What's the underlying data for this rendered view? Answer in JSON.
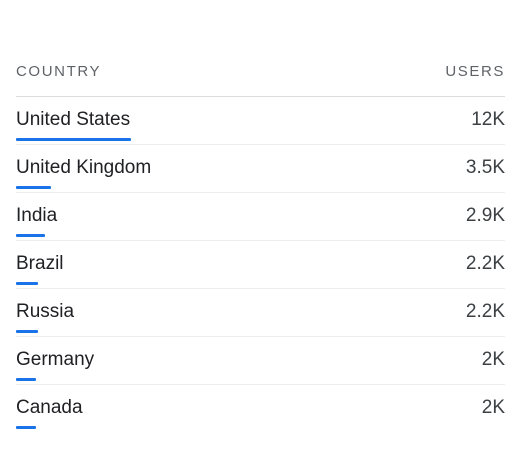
{
  "header": {
    "country_label": "COUNTRY",
    "users_label": "USERS"
  },
  "colors": {
    "accent": "#1a73e8",
    "text": "#202124",
    "muted": "#5f6368",
    "divider": "#dadce0"
  },
  "rows": [
    {
      "country": "United States",
      "users": "12K",
      "fraction": 1.0
    },
    {
      "country": "United Kingdom",
      "users": "3.5K",
      "fraction": 0.3
    },
    {
      "country": "India",
      "users": "2.9K",
      "fraction": 0.25
    },
    {
      "country": "Brazil",
      "users": "2.2K",
      "fraction": 0.19
    },
    {
      "country": "Russia",
      "users": "2.2K",
      "fraction": 0.19
    },
    {
      "country": "Germany",
      "users": "2K",
      "fraction": 0.17
    },
    {
      "country": "Canada",
      "users": "2K",
      "fraction": 0.17
    }
  ]
}
